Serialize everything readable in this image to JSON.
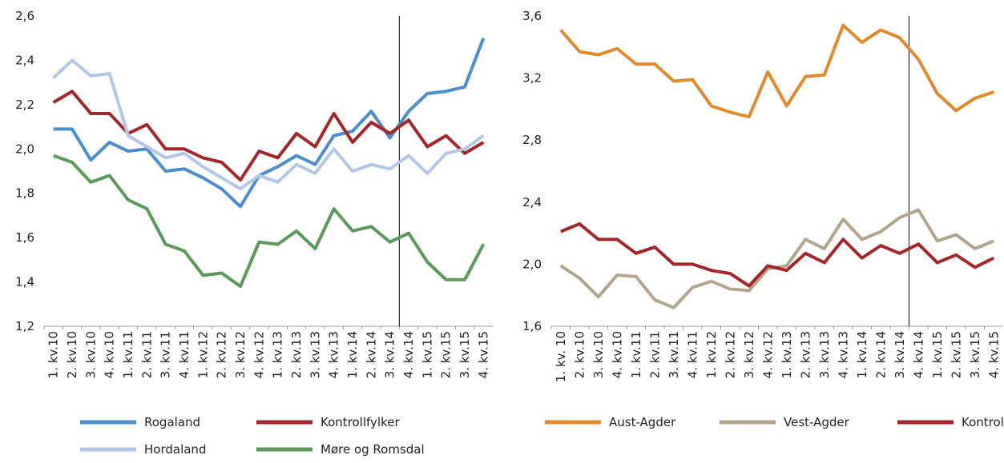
{
  "chart_data": [
    {
      "type": "line",
      "categories": [
        "1. kv.10",
        "2. kv.10",
        "3. kv.10",
        "4. kv.10",
        "1. kv.11",
        "2. kv.11",
        "3. kv.11",
        "4. kv.11",
        "1. kv.12",
        "2. kv.12",
        "3. kv.12",
        "4. kv.12",
        "1. kv.13",
        "2. kv.13",
        "3. kv.13",
        "4. kv.13",
        "1. kv.14",
        "2. kv.14",
        "3. kv.14",
        "4. kv.14",
        "1. kv.15",
        "2. kv.15",
        "3. kv.15",
        "4. kv.15"
      ],
      "ylim": [
        1.2,
        2.6
      ],
      "yticks": [
        {
          "value": 1.2,
          "label": "1,2"
        },
        {
          "value": 1.4,
          "label": "1,4"
        },
        {
          "value": 1.6,
          "label": "1,6"
        },
        {
          "value": 1.8,
          "label": "1,8"
        },
        {
          "value": 2.0,
          "label": "2,0"
        },
        {
          "value": 2.2,
          "label": "2,2"
        },
        {
          "value": 2.4,
          "label": "2,4"
        },
        {
          "value": 2.6,
          "label": "2,6"
        }
      ],
      "series": [
        {
          "name": "Rogaland",
          "color": "#4a8fcb",
          "values": [
            2.09,
            2.09,
            1.95,
            2.03,
            1.99,
            2.0,
            1.9,
            1.91,
            1.87,
            1.82,
            1.74,
            1.88,
            1.92,
            1.97,
            1.93,
            2.06,
            2.08,
            2.17,
            2.05,
            2.17,
            2.25,
            2.26,
            2.28,
            2.5
          ]
        },
        {
          "name": "Kontrollfylker",
          "color": "#a3272a",
          "values": [
            2.21,
            2.26,
            2.16,
            2.16,
            2.07,
            2.11,
            2.0,
            2.0,
            1.96,
            1.94,
            1.86,
            1.99,
            1.96,
            2.07,
            2.01,
            2.16,
            2.03,
            2.12,
            2.07,
            2.13,
            2.01,
            2.06,
            1.98,
            2.03
          ]
        },
        {
          "name": "Hordaland",
          "color": "#b4c6e7",
          "values": [
            2.32,
            2.4,
            2.33,
            2.34,
            2.06,
            2.01,
            1.96,
            1.98,
            1.92,
            1.87,
            1.82,
            1.88,
            1.85,
            1.93,
            1.89,
            2.0,
            1.9,
            1.93,
            1.91,
            1.97,
            1.89,
            1.98,
            2.0,
            2.06
          ]
        },
        {
          "name": "Møre og Romsdal",
          "color": "#5b9a5b",
          "values": [
            1.97,
            1.94,
            1.85,
            1.88,
            1.77,
            1.73,
            1.57,
            1.54,
            1.43,
            1.44,
            1.38,
            1.58,
            1.57,
            1.63,
            1.55,
            1.73,
            1.63,
            1.65,
            1.58,
            1.62,
            1.49,
            1.41,
            1.41,
            1.57
          ]
        }
      ]
    },
    {
      "type": "line",
      "categories": [
        "1. kv. 10",
        "2. kv.10",
        "3. kv.10",
        "4. kv.10",
        "1. kv.11",
        "2. kv.11",
        "3. kv.11",
        "4. kv.11",
        "1. kv.12",
        "2. kv.12",
        "3. kv.12",
        "4. kv.12",
        "1. kv.13",
        "2. kv.13",
        "3. kv.13",
        "4. kv.13",
        "1. kv.14",
        "2. kv.14",
        "3. kv.14",
        "4. kv.14",
        "1. kv.15",
        "2. kv.15",
        "3. kv.15",
        "4. kv.15"
      ],
      "ylim": [
        1.6,
        3.6
      ],
      "yticks": [
        {
          "value": 1.6,
          "label": "1,6"
        },
        {
          "value": 2.0,
          "label": "2,0"
        },
        {
          "value": 2.4,
          "label": "2,4"
        },
        {
          "value": 2.8,
          "label": "2,8"
        },
        {
          "value": 3.2,
          "label": "3,2"
        },
        {
          "value": 3.6,
          "label": "3,6"
        }
      ],
      "series": [
        {
          "name": "Aust-Agder",
          "color": "#e08a2e",
          "values": [
            3.51,
            3.37,
            3.35,
            3.39,
            3.29,
            3.29,
            3.18,
            3.19,
            3.02,
            2.98,
            2.95,
            3.24,
            3.02,
            3.21,
            3.22,
            3.54,
            3.43,
            3.51,
            3.46,
            3.32,
            3.1,
            2.99,
            3.07,
            3.11
          ]
        },
        {
          "name": "Vest-Agder",
          "color": "#b2a58e",
          "values": [
            1.99,
            1.91,
            1.79,
            1.93,
            1.92,
            1.77,
            1.72,
            1.85,
            1.89,
            1.84,
            1.83,
            1.97,
            1.99,
            2.16,
            2.1,
            2.29,
            2.16,
            2.21,
            2.3,
            2.35,
            2.15,
            2.19,
            2.1,
            2.15
          ]
        },
        {
          "name": "Kontrollfylker",
          "color": "#a3272a",
          "values": [
            2.21,
            2.26,
            2.16,
            2.16,
            2.07,
            2.11,
            2.0,
            2.0,
            1.96,
            1.94,
            1.86,
            1.99,
            1.96,
            2.07,
            2.01,
            2.16,
            2.04,
            2.12,
            2.07,
            2.13,
            2.01,
            2.06,
            1.98,
            2.04
          ]
        }
      ]
    }
  ]
}
